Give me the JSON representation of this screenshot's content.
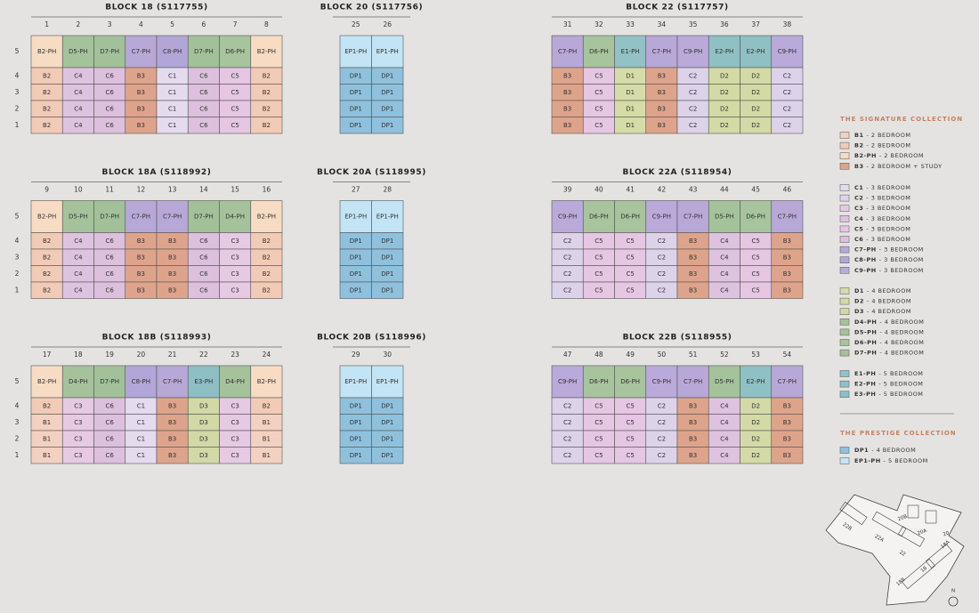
{
  "blocks": [
    {
      "title": "BLOCK 18 (S117755)",
      "units": [
        1,
        2,
        3,
        4,
        5,
        6,
        7,
        8
      ],
      "floors": [
        5,
        4,
        3,
        2,
        1
      ],
      "rows": [
        [
          "B2-PH",
          "D5-PH",
          "D7-PH",
          "C7-PH",
          "C8-PH",
          "D7-PH",
          "D6-PH",
          "B2-PH"
        ],
        [
          "B2",
          "C4",
          "C6",
          "B3",
          "C1",
          "C6",
          "C5",
          "B2"
        ],
        [
          "B2",
          "C4",
          "C6",
          "B3",
          "C1",
          "C6",
          "C5",
          "B2"
        ],
        [
          "B2",
          "C4",
          "C6",
          "B3",
          "C1",
          "C6",
          "C5",
          "B2"
        ],
        [
          "B2",
          "C4",
          "C6",
          "B3",
          "C1",
          "C6",
          "C5",
          "B2"
        ]
      ]
    },
    {
      "title": "BLOCK 20 (S117756)",
      "units": [
        25,
        26
      ],
      "rows": [
        [
          "EP1-PH",
          "EP1-PH"
        ],
        [
          "DP1",
          "DP1"
        ],
        [
          "DP1",
          "DP1"
        ],
        [
          "DP1",
          "DP1"
        ],
        [
          "DP1",
          "DP1"
        ]
      ]
    },
    {
      "title": "BLOCK 22 (S117757)",
      "units": [
        31,
        32,
        33,
        34,
        35,
        36,
        37,
        38
      ],
      "rows": [
        [
          "C7-PH",
          "D6-PH",
          "E1-PH",
          "C7-PH",
          "C9-PH",
          "E2-PH",
          "E2-PH",
          "C9-PH"
        ],
        [
          "B3",
          "C5",
          "D1",
          "B3",
          "C2",
          "D2",
          "D2",
          "C2"
        ],
        [
          "B3",
          "C5",
          "D1",
          "B3",
          "C2",
          "D2",
          "D2",
          "C2"
        ],
        [
          "B3",
          "C5",
          "D1",
          "B3",
          "C2",
          "D2",
          "D2",
          "C2"
        ],
        [
          "B3",
          "C5",
          "D1",
          "B3",
          "C2",
          "D2",
          "D2",
          "C2"
        ]
      ]
    },
    {
      "title": "BLOCK 18A (S118992)",
      "units": [
        9,
        10,
        11,
        12,
        13,
        14,
        15,
        16
      ],
      "floors": [
        5,
        4,
        3,
        2,
        1
      ],
      "rows": [
        [
          "B2-PH",
          "D5-PH",
          "D7-PH",
          "C7-PH",
          "C7-PH",
          "D7-PH",
          "D4-PH",
          "B2-PH"
        ],
        [
          "B2",
          "C4",
          "C6",
          "B3",
          "B3",
          "C6",
          "C3",
          "B2"
        ],
        [
          "B2",
          "C4",
          "C6",
          "B3",
          "B3",
          "C6",
          "C3",
          "B2"
        ],
        [
          "B2",
          "C4",
          "C6",
          "B3",
          "B3",
          "C6",
          "C3",
          "B2"
        ],
        [
          "B2",
          "C4",
          "C6",
          "B3",
          "B3",
          "C6",
          "C3",
          "B2"
        ]
      ]
    },
    {
      "title": "BLOCK 20A (S118995)",
      "units": [
        27,
        28
      ],
      "rows": [
        [
          "EP1-PH",
          "EP1-PH"
        ],
        [
          "DP1",
          "DP1"
        ],
        [
          "DP1",
          "DP1"
        ],
        [
          "DP1",
          "DP1"
        ],
        [
          "DP1",
          "DP1"
        ]
      ]
    },
    {
      "title": "BLOCK 22A (S118954)",
      "units": [
        39,
        40,
        41,
        42,
        43,
        44,
        45,
        46
      ],
      "rows": [
        [
          "C9-PH",
          "D6-PH",
          "D6-PH",
          "C9-PH",
          "C7-PH",
          "D5-PH",
          "D6-PH",
          "C7-PH"
        ],
        [
          "C2",
          "C5",
          "C5",
          "C2",
          "B3",
          "C4",
          "C5",
          "B3"
        ],
        [
          "C2",
          "C5",
          "C5",
          "C2",
          "B3",
          "C4",
          "C5",
          "B3"
        ],
        [
          "C2",
          "C5",
          "C5",
          "C2",
          "B3",
          "C4",
          "C5",
          "B3"
        ],
        [
          "C2",
          "C5",
          "C5",
          "C2",
          "B3",
          "C4",
          "C5",
          "B3"
        ]
      ]
    },
    {
      "title": "BLOCK 18B (S118993)",
      "units": [
        17,
        18,
        19,
        20,
        21,
        22,
        23,
        24
      ],
      "floors": [
        5,
        4,
        3,
        2,
        1
      ],
      "rows": [
        [
          "B2-PH",
          "D4-PH",
          "D7-PH",
          "C8-PH",
          "C7-PH",
          "E3-PH",
          "D4-PH",
          "B2-PH"
        ],
        [
          "B2",
          "C3",
          "C6",
          "C1",
          "B3",
          "D3",
          "C3",
          "B2"
        ],
        [
          "B1",
          "C3",
          "C6",
          "C1",
          "B3",
          "D3",
          "C3",
          "B1"
        ],
        [
          "B1",
          "C3",
          "C6",
          "C1",
          "B3",
          "D3",
          "C3",
          "B1"
        ],
        [
          "B1",
          "C3",
          "C6",
          "C1",
          "B3",
          "D3",
          "C3",
          "B1"
        ]
      ]
    },
    {
      "title": "BLOCK 20B (S118996)",
      "units": [
        29,
        30
      ],
      "rows": [
        [
          "EP1-PH",
          "EP1-PH"
        ],
        [
          "DP1",
          "DP1"
        ],
        [
          "DP1",
          "DP1"
        ],
        [
          "DP1",
          "DP1"
        ],
        [
          "DP1",
          "DP1"
        ]
      ]
    },
    {
      "title": "BLOCK 22B (S118955)",
      "units": [
        47,
        48,
        49,
        50,
        51,
        52,
        53,
        54
      ],
      "rows": [
        [
          "C9-PH",
          "D6-PH",
          "D6-PH",
          "C9-PH",
          "C7-PH",
          "D5-PH",
          "E2-PH",
          "C7-PH"
        ],
        [
          "C2",
          "C5",
          "C5",
          "C2",
          "B3",
          "C4",
          "D2",
          "B3"
        ],
        [
          "C2",
          "C5",
          "C5",
          "C2",
          "B3",
          "C4",
          "D2",
          "B3"
        ],
        [
          "C2",
          "C5",
          "C5",
          "C2",
          "B3",
          "C4",
          "D2",
          "B3"
        ],
        [
          "C2",
          "C5",
          "C5",
          "C2",
          "B3",
          "C4",
          "D2",
          "B3"
        ]
      ]
    }
  ],
  "legend": {
    "signature": {
      "title": "THE SIGNATURE COLLECTION",
      "groups": [
        [
          {
            "code": "B1",
            "text": "- 2 BEDROOM",
            "color": "#f3d1c0"
          },
          {
            "code": "B2",
            "text": "- 2 BEDROOM",
            "color": "#f2cbb6"
          },
          {
            "code": "B2-PH",
            "text": "- 2 BEDROOM",
            "color": "#f7dcc3"
          },
          {
            "code": "B3",
            "text": "- 2 BEDROOM + STUDY",
            "color": "#dea48b"
          }
        ],
        [
          {
            "code": "C1",
            "text": "- 3 BEDROOM",
            "color": "#e4dbee"
          },
          {
            "code": "C2",
            "text": "- 3 BEDROOM",
            "color": "#dcd3ea"
          },
          {
            "code": "C3",
            "text": "- 3 BEDROOM",
            "color": "#e6c9e3"
          },
          {
            "code": "C4",
            "text": "- 3 BEDROOM",
            "color": "#dec3e0"
          },
          {
            "code": "C5",
            "text": "- 3 BEDROOM",
            "color": "#e5c6e3"
          },
          {
            "code": "C6",
            "text": "- 3 BEDROOM",
            "color": "#dcc0dd"
          },
          {
            "code": "C7-PH",
            "text": "- 3 BEDROOM",
            "color": "#b8a8d7"
          },
          {
            "code": "C8-PH",
            "text": "- 3 BEDROOM",
            "color": "#b2a6d8"
          },
          {
            "code": "C9-PH",
            "text": "- 3 BEDROOM",
            "color": "#b9aad9"
          }
        ],
        [
          {
            "code": "D1",
            "text": "- 4 BEDROOM",
            "color": "#d6dca7"
          },
          {
            "code": "D2",
            "text": "- 4 BEDROOM",
            "color": "#d3daa5"
          },
          {
            "code": "D3",
            "text": "- 4 BEDROOM",
            "color": "#d2d8a6"
          },
          {
            "code": "D4-PH",
            "text": "- 4 BEDROOM",
            "color": "#a6c29b"
          },
          {
            "code": "D5-PH",
            "text": "- 4 BEDROOM",
            "color": "#a4c39b"
          },
          {
            "code": "D6-PH",
            "text": "- 4 BEDROOM",
            "color": "#a7c49c"
          },
          {
            "code": "D7-PH",
            "text": "- 4 BEDROOM",
            "color": "#a2c199"
          }
        ],
        [
          {
            "code": "E1-PH",
            "text": "- 5 BEDROOM",
            "color": "#92c2c5"
          },
          {
            "code": "E2-PH",
            "text": "- 5 BEDROOM",
            "color": "#8fc0c4"
          },
          {
            "code": "E3-PH",
            "text": "- 5 BEDROOM",
            "color": "#8dbfc5"
          }
        ]
      ]
    },
    "prestige": {
      "title": "THE PRESTIGE COLLECTION",
      "items": [
        {
          "code": "DP1",
          "text": "- 4 BEDROOM",
          "color": "#8fc1dd"
        },
        {
          "code": "EP1-PH",
          "text": "- 5 BEDROOM",
          "color": "#c3e4f5"
        }
      ]
    }
  },
  "map": {
    "labels": [
      "22B",
      "22A",
      "22",
      "20B",
      "20A",
      "20",
      "18B",
      "18A",
      "18",
      "N"
    ]
  }
}
